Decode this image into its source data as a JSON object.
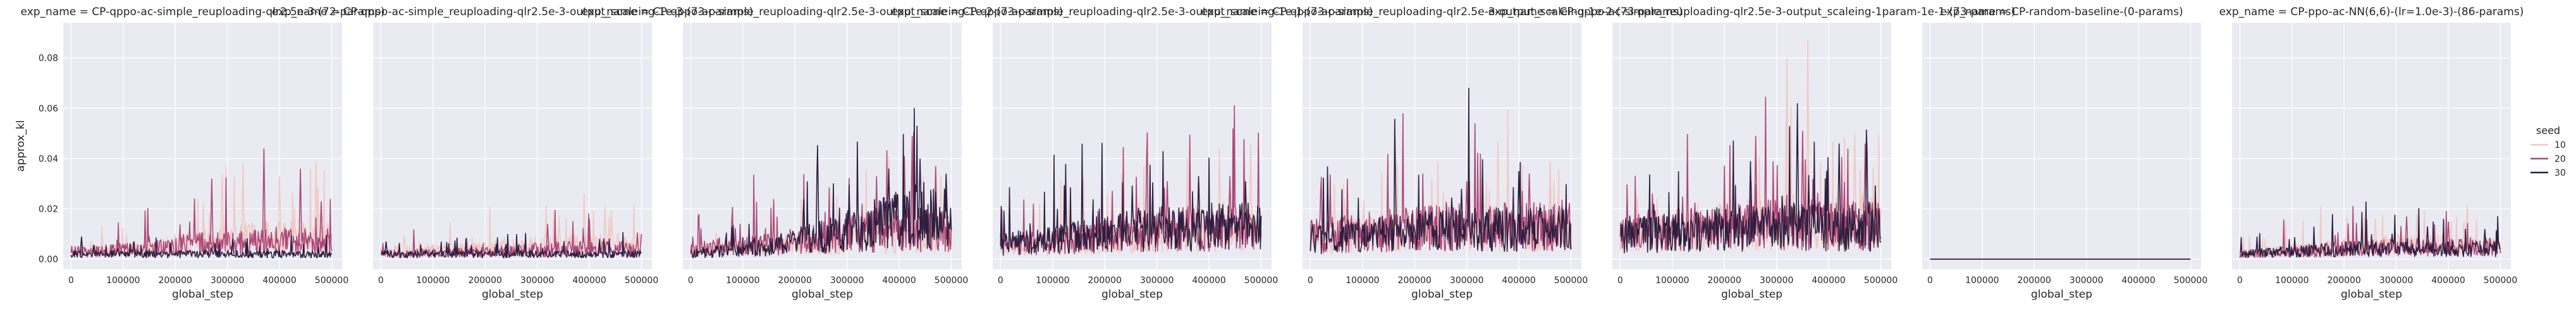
{
  "chart_data": {
    "type": "line",
    "style": "seaborn-darkgrid-facets",
    "background_color": "#eaeaf2",
    "grid": true,
    "grid_color": "#ffffff",
    "xlabel": "global_step",
    "ylabel": "approx_kl",
    "xlim": [
      -15000,
      520000
    ],
    "ylim": [
      -0.004,
      0.094
    ],
    "x_ticks": [
      0,
      100000,
      200000,
      300000,
      400000,
      500000
    ],
    "y_ticks": [
      0.0,
      0.02,
      0.04,
      0.06,
      0.08
    ],
    "x_tick_labels": [
      "0",
      "100000",
      "200000",
      "300000",
      "400000",
      "500000"
    ],
    "y_tick_labels": [
      "0.00",
      "0.02",
      "0.04",
      "0.06",
      "0.08"
    ],
    "legend": {
      "title": "seed",
      "position": "right",
      "entries": [
        {
          "label": "10",
          "color": "#f1c8c4"
        },
        {
          "label": "20",
          "color": "#ad4876"
        },
        {
          "label": "30",
          "color": "#2d1e3e"
        }
      ]
    },
    "facets": [
      {
        "title": "exp_name = CP-qppo-ac-simple_reuploading-qlr2.5e-3-(72-params)",
        "series": [
          {
            "name": "10",
            "base": [
              [
                0,
                0.003
              ],
              [
                150000,
                0.004
              ],
              [
                250000,
                0.007
              ],
              [
                350000,
                0.009
              ],
              [
                500000,
                0.008
              ]
            ],
            "spikes": [
              [
                290000,
                0.034
              ],
              [
                330000,
                0.038
              ],
              [
                400000,
                0.033
              ],
              [
                470000,
                0.039
              ]
            ]
          },
          {
            "name": "20",
            "base": [
              [
                0,
                0.003
              ],
              [
                150000,
                0.004
              ],
              [
                250000,
                0.006
              ],
              [
                350000,
                0.007
              ],
              [
                500000,
                0.007
              ]
            ],
            "spikes": [
              [
                270000,
                0.032
              ],
              [
                370000,
                0.044
              ],
              [
                440000,
                0.036
              ],
              [
                480000,
                0.023
              ]
            ]
          },
          {
            "name": "30",
            "base": [
              [
                0,
                0.002
              ],
              [
                150000,
                0.002
              ],
              [
                300000,
                0.002
              ],
              [
                500000,
                0.002
              ]
            ],
            "spikes": [
              [
                20000,
                0.009
              ],
              [
                310000,
                0.008
              ]
            ]
          }
        ]
      },
      {
        "title": "exp_name = CP-qppo-ac-simple_reuploading-qlr2.5e-3-output_scaleing-1e-3-(73-params)",
        "series": [
          {
            "name": "10",
            "base": [
              [
                0,
                0.003
              ],
              [
                200000,
                0.004
              ],
              [
                350000,
                0.006
              ],
              [
                500000,
                0.006
              ]
            ],
            "spikes": [
              [
                390000,
                0.026
              ],
              [
                430000,
                0.021
              ]
            ]
          },
          {
            "name": "20",
            "base": [
              [
                0,
                0.002
              ],
              [
                200000,
                0.003
              ],
              [
                350000,
                0.004
              ],
              [
                500000,
                0.004
              ]
            ],
            "spikes": [
              [
                320000,
                0.014
              ],
              [
                400000,
                0.016
              ]
            ]
          },
          {
            "name": "30",
            "base": [
              [
                0,
                0.002
              ],
              [
                250000,
                0.002
              ],
              [
                500000,
                0.002
              ]
            ],
            "spikes": [
              [
                10000,
                0.007
              ],
              [
                240000,
                0.006
              ]
            ]
          }
        ]
      },
      {
        "title": "exp_name = CP-qppo-ac-simple_reuploading-qlr2.5e-3-output_scaleing-1e-2-(73-params)",
        "series": [
          {
            "name": "10",
            "base": [
              [
                0,
                0.003
              ],
              [
                200000,
                0.005
              ],
              [
                350000,
                0.008
              ],
              [
                500000,
                0.009
              ]
            ],
            "spikes": [
              [
                430000,
                0.039
              ],
              [
                480000,
                0.033
              ]
            ]
          },
          {
            "name": "20",
            "base": [
              [
                0,
                0.004
              ],
              [
                200000,
                0.007
              ],
              [
                350000,
                0.011
              ],
              [
                500000,
                0.012
              ]
            ],
            "spikes": [
              [
                410000,
                0.041
              ],
              [
                470000,
                0.037
              ]
            ]
          },
          {
            "name": "30",
            "base": [
              [
                0,
                0.002
              ],
              [
                150000,
                0.005
              ],
              [
                300000,
                0.011
              ],
              [
                420000,
                0.017
              ],
              [
                500000,
                0.016
              ]
            ],
            "spikes": [
              [
                380000,
                0.036
              ],
              [
                440000,
                0.04
              ],
              [
                490000,
                0.034
              ]
            ]
          }
        ]
      },
      {
        "title": "exp_name = CP-qppo-ac-simple_reuploading-qlr2.5e-3-output_scaleing-1e-1-(73-params)",
        "series": [
          {
            "name": "10",
            "base": [
              [
                0,
                0.004
              ],
              [
                200000,
                0.008
              ],
              [
                350000,
                0.01
              ],
              [
                500000,
                0.011
              ]
            ],
            "spikes": [
              [
                420000,
                0.044
              ],
              [
                480000,
                0.046
              ]
            ]
          },
          {
            "name": "20",
            "base": [
              [
                0,
                0.005
              ],
              [
                200000,
                0.009
              ],
              [
                350000,
                0.012
              ],
              [
                500000,
                0.012
              ]
            ],
            "spikes": [
              [
                320000,
                0.031
              ],
              [
                440000,
                0.033
              ]
            ]
          },
          {
            "name": "30",
            "base": [
              [
                0,
                0.006
              ],
              [
                150000,
                0.009
              ],
              [
                300000,
                0.012
              ],
              [
                500000,
                0.013
              ]
            ],
            "spikes": [
              [
                380000,
                0.033
              ],
              [
                470000,
                0.031
              ]
            ]
          }
        ]
      },
      {
        "title": "exp_name = CP-qppo-ac-simple_reuploading-qlr2.5e-3-output_scaleing-1e-2-(73-params)",
        "series": [
          {
            "name": "10",
            "base": [
              [
                0,
                0.008
              ],
              [
                200000,
                0.011
              ],
              [
                350000,
                0.012
              ],
              [
                500000,
                0.012
              ]
            ],
            "spikes": [
              [
                360000,
                0.047
              ],
              [
                460000,
                0.039
              ]
            ]
          },
          {
            "name": "20",
            "base": [
              [
                0,
                0.009
              ],
              [
                200000,
                0.012
              ],
              [
                350000,
                0.013
              ],
              [
                500000,
                0.013
              ]
            ],
            "spikes": [
              [
                300000,
                0.031
              ],
              [
                420000,
                0.034
              ]
            ]
          },
          {
            "name": "30",
            "base": [
              [
                0,
                0.008
              ],
              [
                200000,
                0.011
              ],
              [
                350000,
                0.012
              ],
              [
                500000,
                0.012
              ]
            ],
            "spikes": [
              [
                290000,
                0.028
              ],
              [
                400000,
                0.035
              ]
            ]
          }
        ]
      },
      {
        "title": "exp_name = CP-qppo-ac-simple_reuploading-qlr2.5e-3-output_scaleing-1param-1e-1-(73-params)",
        "series": [
          {
            "name": "10",
            "base": [
              [
                0,
                0.009
              ],
              [
                200000,
                0.013
              ],
              [
                350000,
                0.015
              ],
              [
                500000,
                0.013
              ]
            ],
            "spikes": [
              [
                320000,
                0.08
              ],
              [
                360000,
                0.087
              ],
              [
                450000,
                0.05
              ]
            ]
          },
          {
            "name": "20",
            "base": [
              [
                0,
                0.01
              ],
              [
                200000,
                0.013
              ],
              [
                350000,
                0.014
              ],
              [
                500000,
                0.013
              ]
            ],
            "spikes": [
              [
                260000,
                0.049
              ],
              [
                350000,
                0.051
              ],
              [
                470000,
                0.046
              ]
            ]
          },
          {
            "name": "30",
            "base": [
              [
                0,
                0.009
              ],
              [
                200000,
                0.012
              ],
              [
                350000,
                0.013
              ],
              [
                500000,
                0.012
              ]
            ],
            "spikes": [
              [
                250000,
                0.039
              ],
              [
                340000,
                0.062
              ],
              [
                420000,
                0.046
              ]
            ]
          }
        ]
      },
      {
        "title": "exp_name = CP-random-baseline-(0-params)",
        "series": [
          {
            "name": "10",
            "base": [
              [
                0,
                0.0
              ],
              [
                500000,
                0.0
              ]
            ],
            "spikes": []
          },
          {
            "name": "20",
            "base": [
              [
                0,
                0.0
              ],
              [
                500000,
                0.0
              ]
            ],
            "spikes": []
          },
          {
            "name": "30",
            "base": [
              [
                0,
                0.0
              ],
              [
                500000,
                0.0
              ]
            ],
            "spikes": []
          }
        ]
      },
      {
        "title": "exp_name = CP-ppo-ac-NN(6,6)-(lr=1.0e-3)-(86-params)",
        "series": [
          {
            "name": "10",
            "base": [
              [
                0,
                0.002
              ],
              [
                200000,
                0.005
              ],
              [
                350000,
                0.006
              ],
              [
                500000,
                0.005
              ]
            ],
            "spikes": [
              [
                260000,
                0.016
              ],
              [
                340000,
                0.018
              ],
              [
                430000,
                0.015
              ]
            ]
          },
          {
            "name": "20",
            "base": [
              [
                0,
                0.002
              ],
              [
                200000,
                0.004
              ],
              [
                350000,
                0.005
              ],
              [
                500000,
                0.005
              ]
            ],
            "spikes": [
              [
                320000,
                0.017
              ],
              [
                400000,
                0.015
              ]
            ]
          },
          {
            "name": "30",
            "base": [
              [
                0,
                0.002
              ],
              [
                200000,
                0.004
              ],
              [
                350000,
                0.004
              ],
              [
                500000,
                0.004
              ]
            ],
            "spikes": [
              [
                360000,
                0.013
              ],
              [
                470000,
                0.012
              ]
            ]
          }
        ]
      }
    ]
  }
}
